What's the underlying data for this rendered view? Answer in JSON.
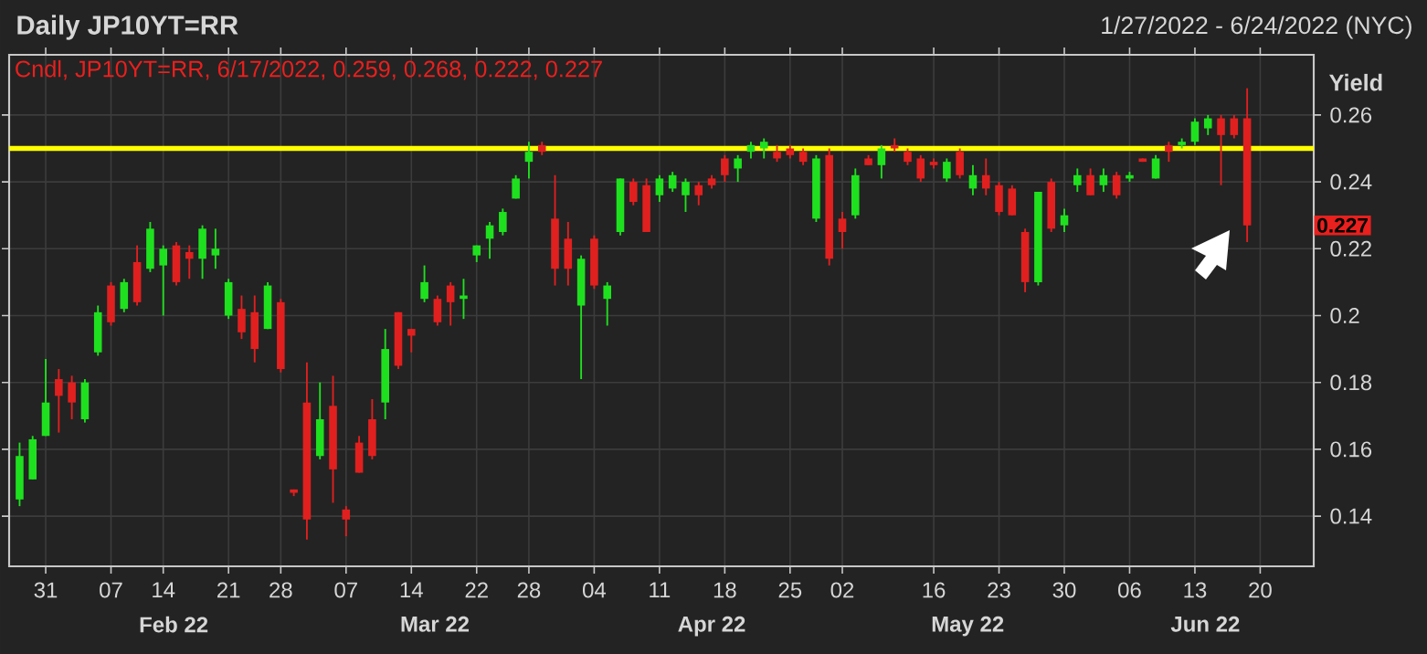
{
  "chart_data": {
    "type": "candlestick",
    "title": "Daily JP10YT=RR",
    "subtitle": "1/27/2022 - 6/24/2022 (NYC)",
    "ylabel": "Yield",
    "annotations": [
      "Cndl, JP10YT=RR, 6/17/2022, 0.259, 0.268, 0.222, 0.227",
      {
        "text": "0.227",
        "y": 0.227
      },
      "Feb 22",
      "Mar 22",
      "Apr 22",
      "May 22",
      "Jun 22"
    ],
    "categories": [
      null,
      null,
      "31",
      null,
      null,
      null,
      null,
      "07",
      null,
      null,
      null,
      "14",
      null,
      null,
      null,
      null,
      "21",
      null,
      null,
      null,
      "28",
      null,
      null,
      null,
      null,
      "07",
      null,
      null,
      null,
      null,
      "14",
      null,
      null,
      null,
      null,
      "22",
      null,
      null,
      null,
      "28",
      null,
      null,
      null,
      null,
      "04",
      null,
      null,
      null,
      null,
      "11",
      null,
      null,
      null,
      null,
      "18",
      null,
      null,
      null,
      null,
      "25",
      null,
      null,
      null,
      "02",
      null,
      null,
      null,
      null,
      null,
      null,
      "16",
      null,
      null,
      null,
      null,
      "23",
      null,
      null,
      null,
      null,
      "30",
      null,
      null,
      null,
      null,
      "06",
      null,
      null,
      null,
      null,
      "13",
      null,
      null,
      null,
      null,
      "20",
      null,
      null,
      null,
      null
    ],
    "ohlc": [
      [
        0.145,
        0.162,
        0.143,
        0.158
      ],
      [
        0.151,
        0.164,
        0.151,
        0.163
      ],
      [
        0.164,
        0.187,
        0.164,
        0.174
      ],
      [
        0.181,
        0.184,
        0.165,
        0.176
      ],
      [
        0.18,
        0.182,
        0.169,
        0.174
      ],
      [
        0.169,
        0.181,
        0.168,
        0.18
      ],
      [
        0.189,
        0.203,
        0.188,
        0.201
      ],
      [
        0.209,
        0.21,
        0.197,
        0.198
      ],
      [
        0.202,
        0.211,
        0.201,
        0.21
      ],
      [
        0.216,
        0.221,
        0.203,
        0.204
      ],
      [
        0.214,
        0.228,
        0.213,
        0.226
      ],
      [
        0.215,
        0.221,
        0.2,
        0.22
      ],
      [
        0.221,
        0.222,
        0.209,
        0.21
      ],
      [
        0.219,
        0.221,
        0.211,
        0.217
      ],
      [
        0.217,
        0.227,
        0.211,
        0.226
      ],
      [
        0.218,
        0.226,
        0.214,
        0.22
      ],
      [
        0.2,
        0.211,
        0.199,
        0.21
      ],
      [
        0.202,
        0.206,
        0.193,
        0.195
      ],
      [
        0.201,
        0.206,
        0.186,
        0.19
      ],
      [
        0.196,
        0.21,
        0.196,
        0.209
      ],
      [
        0.204,
        0.205,
        0.183,
        0.184
      ],
      [
        0.148,
        0.148,
        0.146,
        0.147
      ],
      [
        0.174,
        0.186,
        0.133,
        0.139
      ],
      [
        0.158,
        0.18,
        0.157,
        0.169
      ],
      [
        0.173,
        0.182,
        0.144,
        0.154
      ],
      [
        0.142,
        0.143,
        0.134,
        0.139
      ],
      [
        0.162,
        0.164,
        0.153,
        0.153
      ],
      [
        0.169,
        0.175,
        0.157,
        0.158
      ],
      [
        0.174,
        0.196,
        0.169,
        0.19
      ],
      [
        0.201,
        0.201,
        0.184,
        0.185
      ],
      [
        0.196,
        0.196,
        0.189,
        0.194
      ],
      [
        0.205,
        0.215,
        0.204,
        0.21
      ],
      [
        0.205,
        0.206,
        0.197,
        0.198
      ],
      [
        0.209,
        0.21,
        0.197,
        0.204
      ],
      [
        0.205,
        0.211,
        0.199,
        0.206
      ],
      [
        0.218,
        0.221,
        0.216,
        0.221
      ],
      [
        0.223,
        0.228,
        0.217,
        0.227
      ],
      [
        0.225,
        0.232,
        0.224,
        0.231
      ],
      [
        0.235,
        0.242,
        0.235,
        0.241
      ],
      [
        0.246,
        0.252,
        0.241,
        0.249
      ],
      [
        0.251,
        0.252,
        0.248,
        0.249
      ],
      [
        0.229,
        0.242,
        0.209,
        0.214
      ],
      [
        0.223,
        0.228,
        0.209,
        0.214
      ],
      [
        0.203,
        0.218,
        0.181,
        0.217
      ],
      [
        0.223,
        0.224,
        0.208,
        0.209
      ],
      [
        0.205,
        0.21,
        0.197,
        0.209
      ],
      [
        0.225,
        0.241,
        0.224,
        0.241
      ],
      [
        0.24,
        0.241,
        0.233,
        0.234
      ],
      [
        0.239,
        0.241,
        0.225,
        0.225
      ],
      [
        0.236,
        0.242,
        0.234,
        0.241
      ],
      [
        0.238,
        0.243,
        0.237,
        0.242
      ],
      [
        0.236,
        0.241,
        0.231,
        0.24
      ],
      [
        0.239,
        0.24,
        0.233,
        0.236
      ],
      [
        0.241,
        0.242,
        0.238,
        0.239
      ],
      [
        0.247,
        0.248,
        0.24,
        0.242
      ],
      [
        0.244,
        0.248,
        0.24,
        0.247
      ],
      [
        0.249,
        0.252,
        0.247,
        0.251
      ],
      [
        0.25,
        0.253,
        0.247,
        0.252
      ],
      [
        0.249,
        0.251,
        0.246,
        0.247
      ],
      [
        0.25,
        0.251,
        0.247,
        0.248
      ],
      [
        0.249,
        0.25,
        0.245,
        0.246
      ],
      [
        0.229,
        0.248,
        0.228,
        0.247
      ],
      [
        0.248,
        0.25,
        0.215,
        0.217
      ],
      [
        0.229,
        0.231,
        0.22,
        0.225
      ],
      [
        0.23,
        0.244,
        0.229,
        0.242
      ],
      [
        0.247,
        0.248,
        0.245,
        0.245
      ],
      [
        0.245,
        0.251,
        0.241,
        0.25
      ],
      [
        0.251,
        0.253,
        0.249,
        0.25
      ],
      [
        0.249,
        0.25,
        0.245,
        0.246
      ],
      [
        0.247,
        0.248,
        0.24,
        0.241
      ],
      [
        0.246,
        0.247,
        0.244,
        0.245
      ],
      [
        0.241,
        0.247,
        0.24,
        0.246
      ],
      [
        0.249,
        0.25,
        0.241,
        0.242
      ],
      [
        0.238,
        0.245,
        0.236,
        0.242
      ],
      [
        0.242,
        0.247,
        0.236,
        0.238
      ],
      [
        0.239,
        0.24,
        0.23,
        0.231
      ],
      [
        0.238,
        0.239,
        0.23,
        0.23
      ],
      [
        0.225,
        0.226,
        0.207,
        0.21
      ],
      [
        0.21,
        0.237,
        0.209,
        0.237
      ],
      [
        0.24,
        0.241,
        0.225,
        0.226
      ],
      [
        0.227,
        0.232,
        0.225,
        0.23
      ],
      [
        0.239,
        0.244,
        0.237,
        0.242
      ],
      [
        0.242,
        0.244,
        0.236,
        0.236
      ],
      [
        0.239,
        0.244,
        0.237,
        0.242
      ],
      [
        0.242,
        0.243,
        0.235,
        0.236
      ],
      [
        0.241,
        0.243,
        0.24,
        0.242
      ],
      [
        0.247,
        0.247,
        0.246,
        0.246
      ],
      [
        0.241,
        0.248,
        0.241,
        0.247
      ],
      [
        0.251,
        0.252,
        0.246,
        0.249
      ],
      [
        0.251,
        0.253,
        0.25,
        0.252
      ],
      [
        0.252,
        0.259,
        0.251,
        0.258
      ],
      [
        0.256,
        0.26,
        0.254,
        0.259
      ],
      [
        0.259,
        0.26,
        0.239,
        0.254
      ],
      [
        0.259,
        0.26,
        0.253,
        0.254
      ],
      [
        0.259,
        0.268,
        0.222,
        0.227
      ],
      null,
      null,
      null,
      null,
      null
    ],
    "colors": [
      "#1fe01f",
      "#1fe01f",
      "#1fe01f",
      "#e0201f",
      "#e0201f",
      "#1fe01f",
      "#1fe01f",
      "#e0201f",
      "#1fe01f",
      "#e0201f",
      "#1fe01f",
      "#1fe01f",
      "#e0201f",
      "#e0201f",
      "#1fe01f",
      "#1fe01f",
      "#1fe01f",
      "#e0201f",
      "#e0201f",
      "#1fe01f",
      "#e0201f",
      "#e0201f",
      "#e0201f",
      "#1fe01f",
      "#e0201f",
      "#e0201f",
      "#e0201f",
      "#e0201f",
      "#1fe01f",
      "#e0201f",
      "#e0201f",
      "#1fe01f",
      "#e0201f",
      "#e0201f",
      "#1fe01f",
      "#1fe01f",
      "#1fe01f",
      "#1fe01f",
      "#1fe01f",
      "#1fe01f",
      "#e0201f",
      "#e0201f",
      "#e0201f",
      "#1fe01f",
      "#e0201f",
      "#1fe01f",
      "#1fe01f",
      "#e0201f",
      "#e0201f",
      "#1fe01f",
      "#1fe01f",
      "#1fe01f",
      "#e0201f",
      "#e0201f",
      "#e0201f",
      "#1fe01f",
      "#1fe01f",
      "#1fe01f",
      "#e0201f",
      "#e0201f",
      "#e0201f",
      "#1fe01f",
      "#e0201f",
      "#e0201f",
      "#1fe01f",
      "#e0201f",
      "#1fe01f",
      "#e0201f",
      "#e0201f",
      "#e0201f",
      "#e0201f",
      "#1fe01f",
      "#e0201f",
      "#1fe01f",
      "#e0201f",
      "#e0201f",
      "#e0201f",
      "#e0201f",
      "#1fe01f",
      "#e0201f",
      "#1fe01f",
      "#1fe01f",
      "#e0201f",
      "#1fe01f",
      "#e0201f",
      "#1fe01f",
      "#e0201f",
      "#1fe01f",
      "#e0201f",
      "#1fe01f",
      "#1fe01f",
      "#1fe01f",
      "#e0201f",
      "#e0201f",
      "#e0201f",
      null,
      null,
      null,
      null,
      null
    ],
    "ylim": [
      0.125,
      0.278
    ],
    "yticks": [
      0.14,
      0.16,
      0.18,
      0.2,
      0.22,
      0.24,
      0.26
    ],
    "grid": true,
    "ref_lines": [
      {
        "axis": "y",
        "value": 0.25,
        "color": "#ffff00"
      }
    ]
  }
}
